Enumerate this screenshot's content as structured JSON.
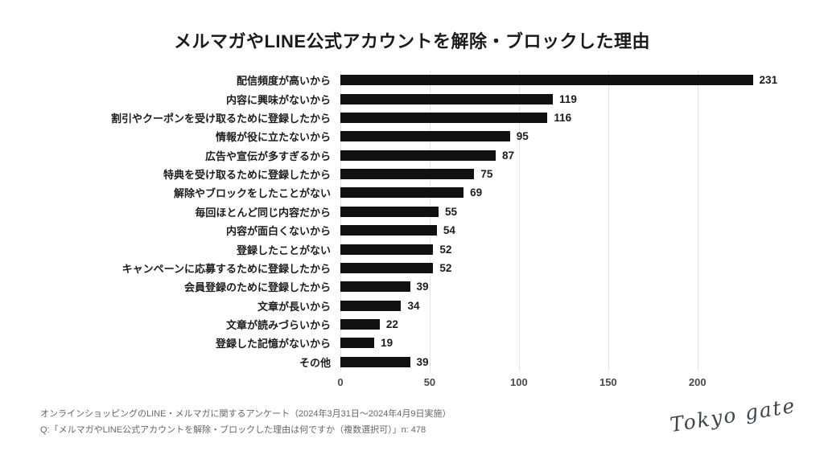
{
  "title": "メルマガやLINE公式アカウントを解除・ブロックした理由",
  "chart_data": {
    "type": "bar",
    "orientation": "horizontal",
    "title": "メルマガやLINE公式アカウントを解除・ブロックした理由",
    "categories": [
      "配信頻度が高いから",
      "内容に興味がないから",
      "割引やクーポンを受け取るために登録したから",
      "情報が役に立たないから",
      "広告や宣伝が多すぎるから",
      "特典を受け取るために登録したから",
      "解除やブロックをしたことがない",
      "毎回ほとんど同じ内容だから",
      "内容が面白くないから",
      "登録したことがない",
      "キャンペーンに応募するために登録したから",
      "会員登録のために登録したから",
      "文章が長いから",
      "文章が読みづらいから",
      "登録した記憶がないから",
      "その他"
    ],
    "values": [
      231,
      119,
      116,
      95,
      87,
      75,
      69,
      55,
      54,
      52,
      52,
      39,
      34,
      22,
      19,
      39
    ],
    "xlabel": "",
    "ylabel": "",
    "xlim": [
      0,
      233
    ],
    "x_ticks": [
      0,
      50,
      100,
      150,
      200
    ],
    "grid": "vertical-only",
    "legend": "none",
    "bar_color": "#111111"
  },
  "footer": {
    "line1": "オンラインショッピングのLINE・メルマガに関するアンケート（2024年3月31日～2024年4月9日実施）",
    "line2": "Q:「メルマガやLINE公式アカウントを解除・ブロックした理由は何ですか（複数選択可）」n: 478"
  },
  "logo": {
    "text": "Tokyo gate"
  },
  "colors": {
    "background": "#ffffff",
    "bar": "#111111",
    "label_text": "#1c1c1c",
    "axis_text": "#4a4a4a",
    "gridline": "#e4e4e4",
    "footer_text": "#63676b",
    "logo_text": "#3e464b"
  }
}
